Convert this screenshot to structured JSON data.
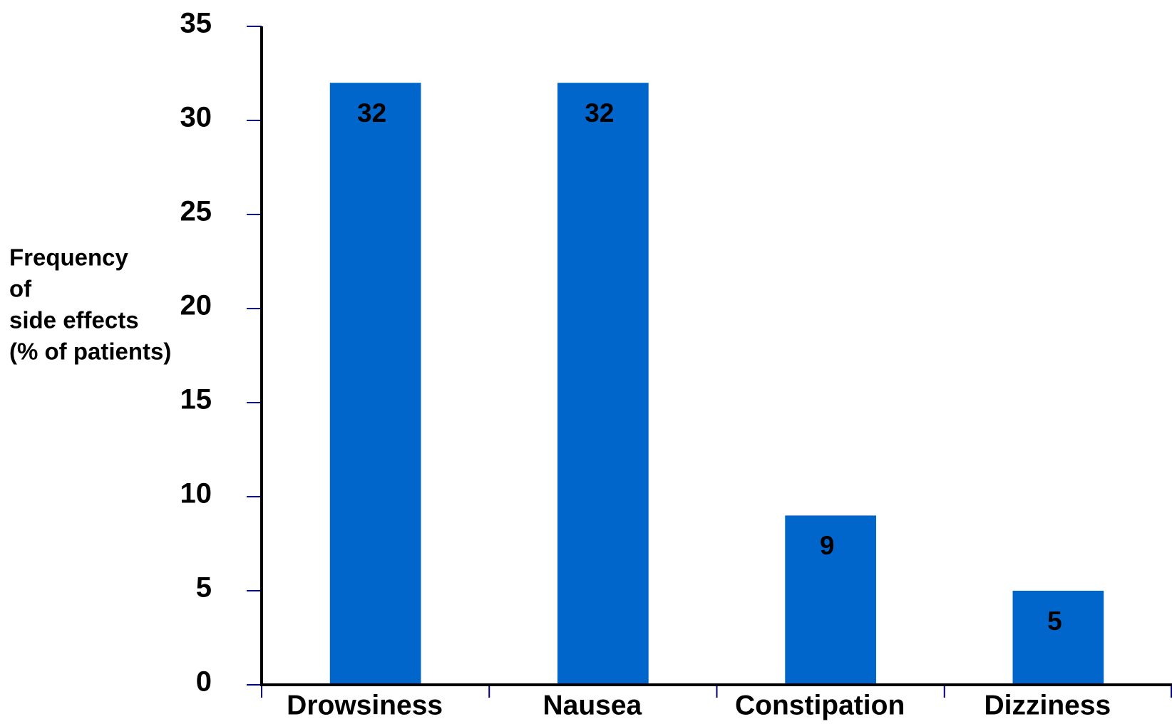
{
  "chart_data": {
    "type": "bar",
    "y_label_lines": [
      "Frequency",
      "of",
      "side effects",
      "(% of patients)"
    ],
    "categories": [
      "Drowsiness",
      "Nausea",
      "Constipation",
      "Dizziness"
    ],
    "values": [
      32,
      32,
      9,
      5
    ],
    "color": "#0066cc",
    "ylim": [
      0,
      35
    ],
    "yticks": [
      0,
      5,
      10,
      15,
      20,
      25,
      30,
      35
    ],
    "grid": false
  }
}
